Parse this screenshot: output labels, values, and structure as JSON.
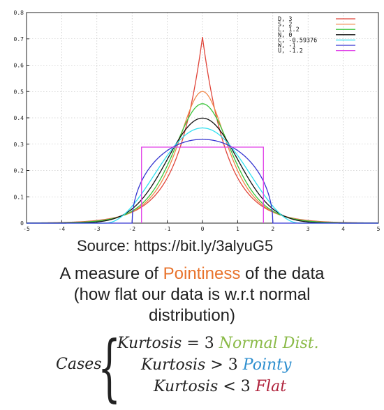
{
  "chart_data": {
    "type": "line",
    "title": "",
    "xlabel": "",
    "ylabel": "",
    "xlim": [
      -5,
      5
    ],
    "ylim": [
      0,
      0.8
    ],
    "x_ticks": [
      "-5",
      "-4",
      "-3",
      "-2",
      "-1",
      "0",
      "1",
      "2",
      "3",
      "4",
      "5"
    ],
    "y_ticks": [
      "0",
      "0.1",
      "0.2",
      "0.3",
      "0.4",
      "0.5",
      "0.6",
      "0.7",
      "0.8"
    ],
    "grid": true,
    "legend_position": "top-right",
    "series": [
      {
        "name": "D,  3",
        "color": "#e0453a",
        "distribution": "laplace",
        "peak": 0.707
      },
      {
        "name": "S,  2",
        "color": "#f0884a",
        "distribution": "sech",
        "peak": 0.5
      },
      {
        "name": "L,  1.2",
        "color": "#39c43a",
        "distribution": "logistic",
        "peak": 0.453
      },
      {
        "name": "N,  0",
        "color": "#111111",
        "distribution": "normal",
        "peak": 0.399
      },
      {
        "name": "C,  -0.59376",
        "color": "#2fe0f0",
        "distribution": "raised-cosine",
        "peak": 0.361
      },
      {
        "name": "W,  -1",
        "color": "#3535d0",
        "distribution": "semicircle",
        "peak": 0.318
      },
      {
        "name": "U,  -1.2",
        "color": "#e040e8",
        "distribution": "uniform",
        "peak": 0.289
      }
    ]
  },
  "source_text": "Source: https://bit.ly/3alyuG5",
  "headline": {
    "before": "A measure of ",
    "accent": "Pointiness",
    "after": " of the data",
    "line2": "(how flat our data is w.r.t normal",
    "line3": "distribution)"
  },
  "cases": {
    "label": "Cases",
    "rows": [
      {
        "term": "Kurtosis",
        "op": "=",
        "value": "3",
        "desc": "Normal Dist."
      },
      {
        "term": "Kurtosis",
        "op": ">",
        "value": "3",
        "desc": "Pointy"
      },
      {
        "term": "Kurtosis",
        "op": "<",
        "value": "3",
        "desc": "Flat"
      }
    ]
  }
}
